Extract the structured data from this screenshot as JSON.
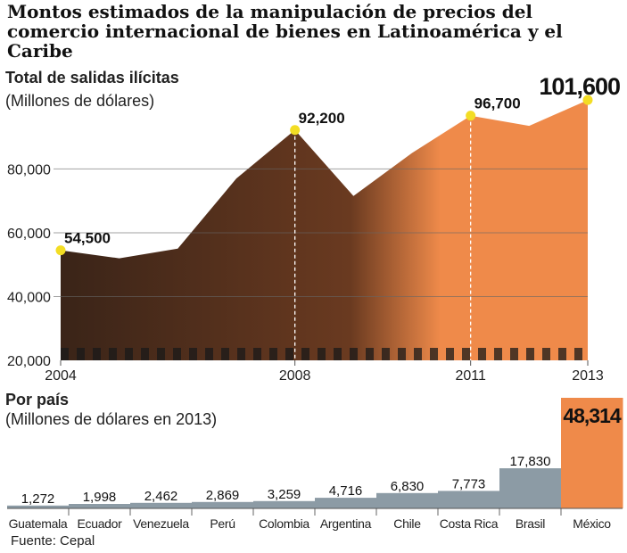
{
  "header": {
    "title": "Montos estimados de la manipulación de precios del comercio internacional de bienes en Latinoamérica y el Caribe"
  },
  "source": "Fuente: Cepal",
  "colors": {
    "orange": "#ef8a4a",
    "dark": "#3a2418",
    "bar_gray": "#8c9ba5",
    "highlight": "#f3dd24"
  },
  "chart_data": [
    {
      "type": "area",
      "title": "Total de salidas ilícitas",
      "subtitle": "(Millones de dólares)",
      "x": [
        2004,
        2005,
        2006,
        2007,
        2008,
        2009,
        2010,
        2011,
        2012,
        2013
      ],
      "y": [
        54500,
        52000,
        55000,
        77000,
        92200,
        71500,
        85000,
        96700,
        93500,
        101600
      ],
      "ylim": [
        20000,
        105000
      ],
      "yticks": [
        20000,
        40000,
        60000,
        80000
      ],
      "ytick_labels": [
        "20,000",
        "40,000",
        "60,000",
        "80,000"
      ],
      "xticks": [
        2004,
        2008,
        2011,
        2013
      ],
      "xtick_labels": [
        "2004",
        "2008",
        "2011",
        "2013"
      ],
      "grid": true,
      "annotations": [
        {
          "x": 2004,
          "label": "54,500"
        },
        {
          "x": 2008,
          "label": "92,200"
        },
        {
          "x": 2011,
          "label": "96,700"
        },
        {
          "x": 2013,
          "label": "101,600"
        }
      ]
    },
    {
      "type": "bar",
      "title": "Por país",
      "subtitle": "(Millones de dólares en 2013)",
      "categories": [
        "Guatemala",
        "Ecuador",
        "Venezuela",
        "Perú",
        "Colombia",
        "Argentina",
        "Chile",
        "Costa Rica",
        "Brasil",
        "México"
      ],
      "values": [
        1272,
        1998,
        2462,
        2869,
        3259,
        4716,
        6830,
        7773,
        17830,
        48314
      ],
      "value_labels": [
        "1,272",
        "1,998",
        "2,462",
        "2,869",
        "3,259",
        "4,716",
        "6,830",
        "7,773",
        "17,830",
        "48,314"
      ]
    }
  ]
}
